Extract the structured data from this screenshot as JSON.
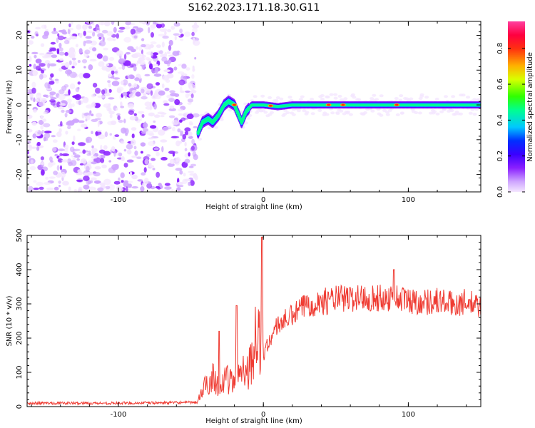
{
  "title": "S162.2023.171.18.30.G11",
  "colors": {
    "snr_line": "#ef3b32",
    "frame": "#000000",
    "colormap": [
      "#f4e6ff",
      "#cfa6ff",
      "#8a20ff",
      "#3a00ff",
      "#0030ff",
      "#00c8ff",
      "#00ff90",
      "#30ff00",
      "#d8ff00",
      "#ffb000",
      "#ff3010",
      "#ff0040",
      "#ff40a0"
    ]
  },
  "chart_data": [
    {
      "type": "heatmap",
      "name": "spectrogram",
      "xlabel": "Height of straight line (km)",
      "ylabel": "Frequency (Hz)",
      "xlim": [
        -163,
        150
      ],
      "ylim": [
        -25,
        24
      ],
      "x_ticks": [
        -100,
        0,
        100
      ],
      "x_tick_labels": [
        "-100",
        "0",
        "100"
      ],
      "y_ticks": [
        -20,
        -10,
        0,
        10,
        20
      ],
      "y_tick_labels": [
        "-20",
        "-10",
        "0",
        "10",
        "20"
      ],
      "noise_region_x": [
        -163,
        -46
      ],
      "ridge": {
        "x": [
          -45,
          -42,
          -38,
          -35,
          -31,
          -27,
          -24,
          -20,
          -17,
          -15,
          -12,
          -8,
          -4,
          0,
          10,
          20,
          40,
          60,
          80,
          100,
          120,
          150
        ],
        "freq": [
          -8,
          -5,
          -4,
          -5,
          -3,
          0,
          1,
          0,
          -3,
          -5,
          -2,
          0,
          0,
          0,
          -0.5,
          0,
          0,
          0,
          0,
          0,
          0,
          0
        ],
        "peak_amplitude_x": [
          -20,
          5,
          45,
          55,
          92
        ]
      },
      "colorbar": {
        "label": "Normalized spectral amplitude",
        "range": [
          0,
          0.95
        ],
        "ticks": [
          0.0,
          0.2,
          0.4,
          0.6,
          0.8
        ],
        "tick_labels": [
          "0.0",
          "0.2",
          "0.4",
          "0.6",
          "0.8"
        ]
      }
    },
    {
      "type": "line",
      "name": "snr",
      "xlabel": "Height of straight line (km)",
      "ylabel": "SNR (10 * v/v)",
      "xlim": [
        -163,
        150
      ],
      "ylim": [
        0,
        500
      ],
      "x_ticks": [
        -100,
        0,
        100
      ],
      "x_tick_labels": [
        "-100",
        "0",
        "100"
      ],
      "y_ticks": [
        0,
        100,
        200,
        300,
        400,
        500
      ],
      "y_tick_labels": [
        "0",
        "100",
        "200",
        "300",
        "400",
        "500"
      ],
      "envelope": {
        "x": [
          -163,
          -100,
          -46,
          -40,
          -35,
          -30,
          -25,
          -20,
          -15,
          -10,
          -5,
          -2,
          0,
          5,
          10,
          20,
          30,
          40,
          50,
          60,
          70,
          80,
          90,
          100,
          110,
          120,
          130,
          140,
          150
        ],
        "snr": [
          10,
          10,
          12,
          60,
          90,
          60,
          80,
          70,
          120,
          110,
          200,
          180,
          150,
          200,
          240,
          265,
          300,
          305,
          315,
          315,
          320,
          315,
          320,
          310,
          305,
          310,
          300,
          305,
          290
        ]
      },
      "spikes": [
        {
          "x": -30.5,
          "snr": 220
        },
        {
          "x": -18.5,
          "snr": 295
        },
        {
          "x": -1,
          "snr": 495
        },
        {
          "x": 90,
          "snr": 400
        }
      ]
    }
  ]
}
